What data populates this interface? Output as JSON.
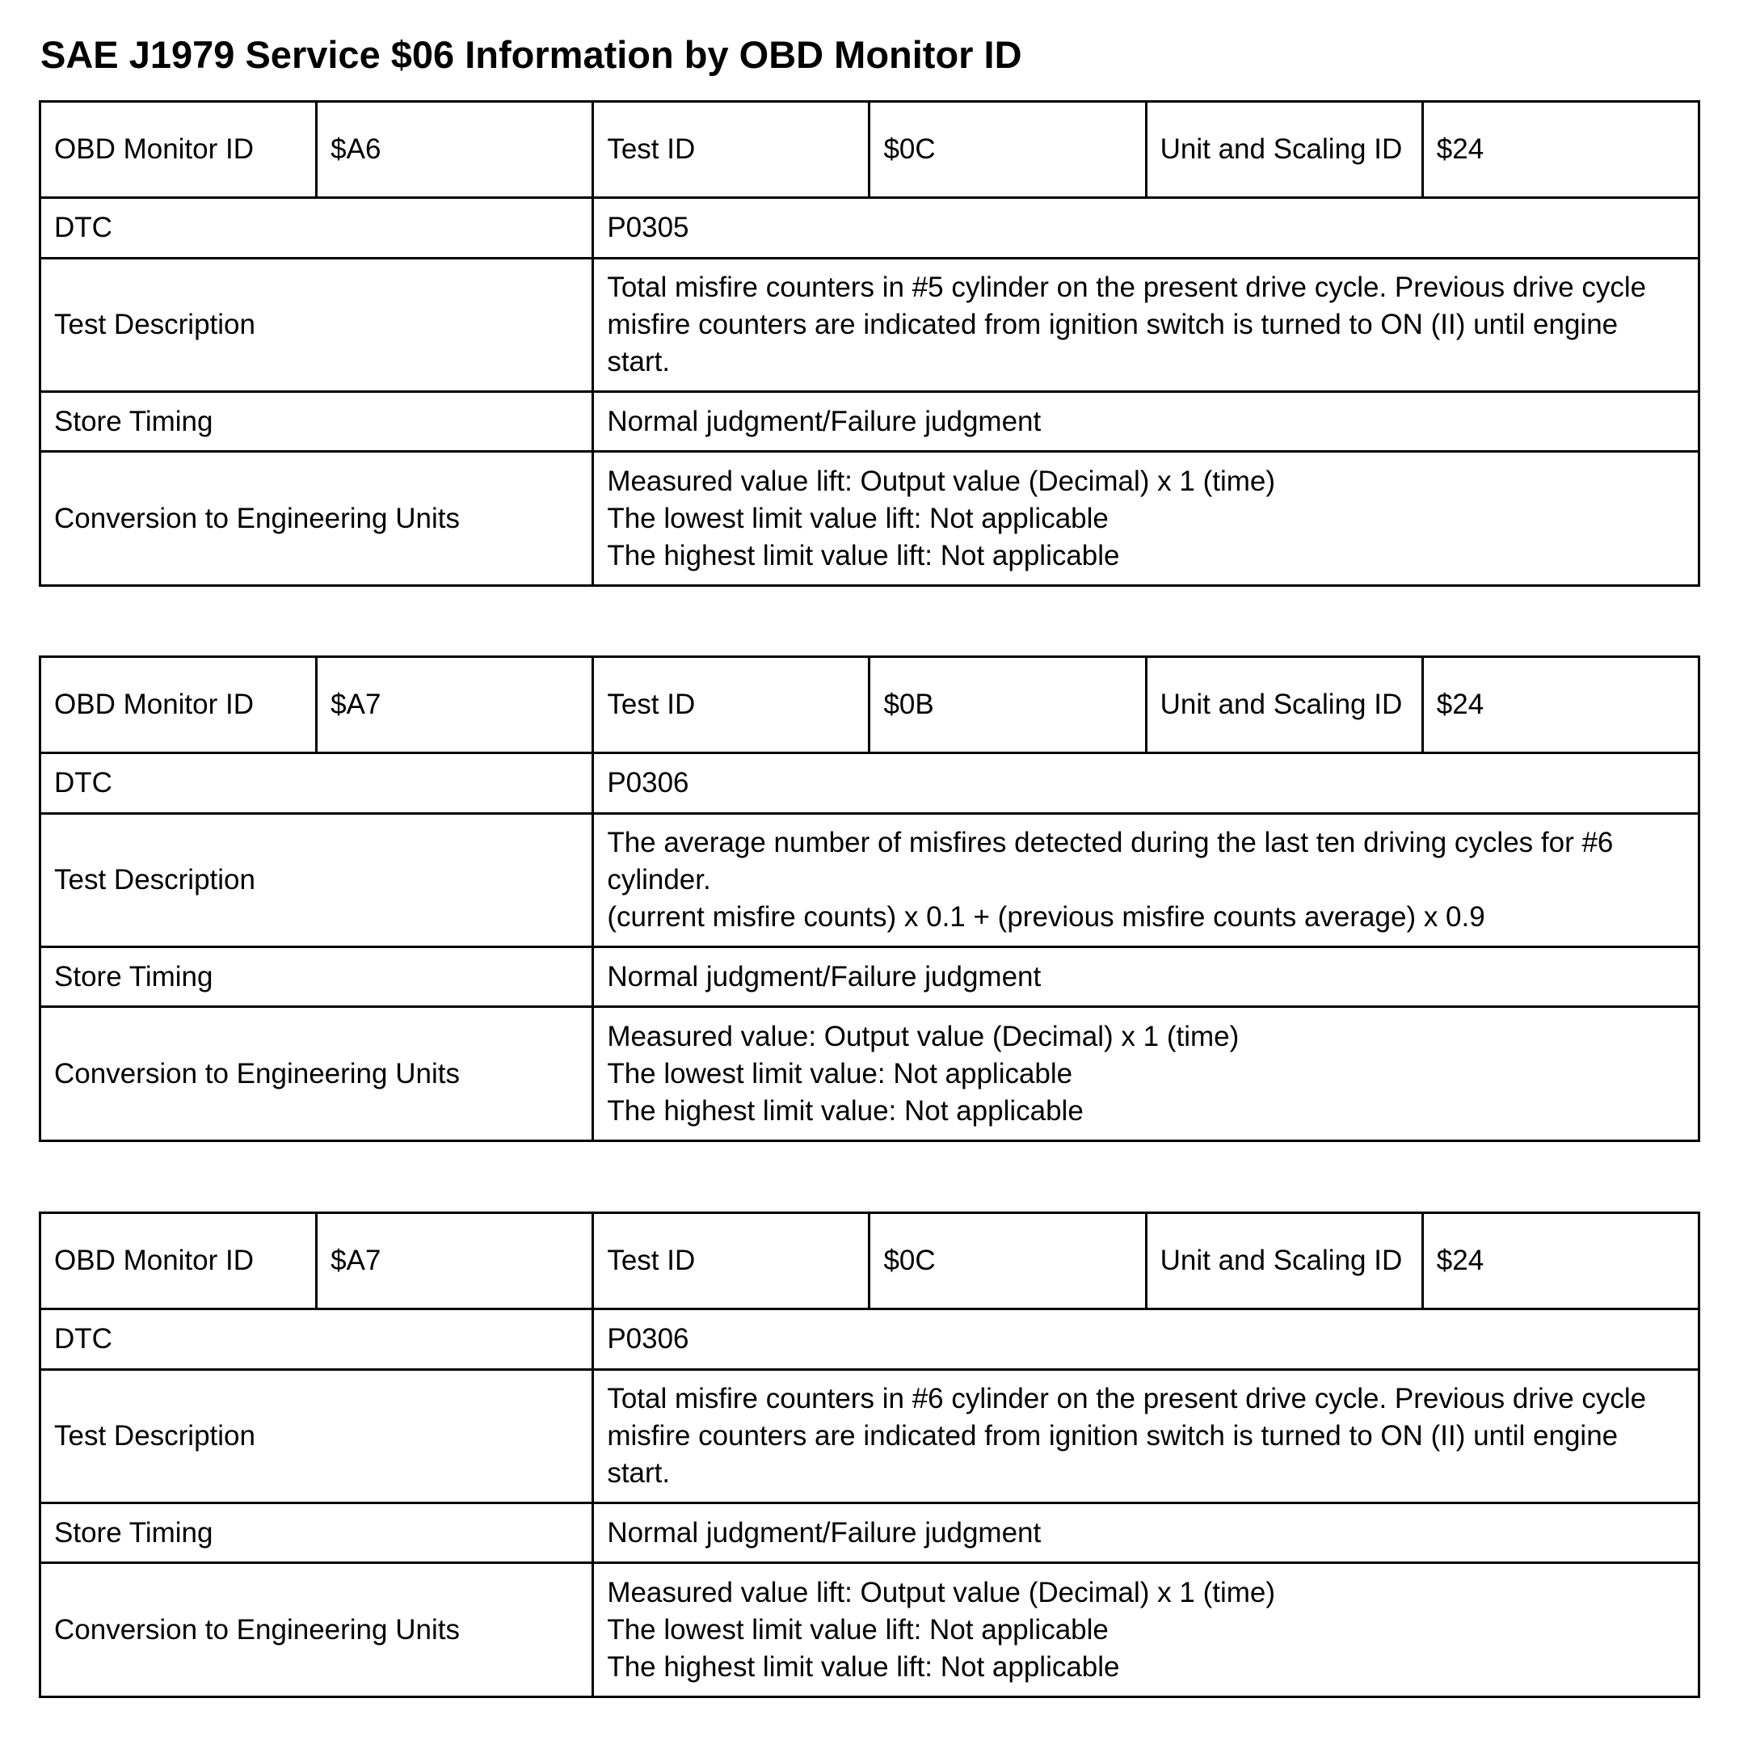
{
  "title": "SAE J1979 Service $06 Information by OBD Monitor ID",
  "labels": {
    "obd_monitor_id": "OBD Monitor ID",
    "test_id": "Test ID",
    "unit_scaling_id": "Unit and Scaling ID",
    "dtc": "DTC",
    "test_description": "Test Description",
    "store_timing": "Store Timing",
    "conversion": "Conversion to Engineering Units"
  },
  "tables": [
    {
      "obd_monitor_id": "$A6",
      "test_id": "$0C",
      "unit_scaling_id": "$24",
      "dtc": "P0305",
      "test_description": [
        "Total misfire counters in #5 cylinder on the present drive cycle. Previous drive cycle misfire counters are indicated from ignition switch is turned to ON (II) until engine start."
      ],
      "store_timing": "Normal judgment/Failure judgment",
      "conversion": [
        "Measured value lift: Output value (Decimal) x 1 (time)",
        "The lowest limit value lift: Not applicable",
        "The highest limit value lift: Not applicable"
      ]
    },
    {
      "obd_monitor_id": "$A7",
      "test_id": "$0B",
      "unit_scaling_id": "$24",
      "dtc": "P0306",
      "test_description": [
        "The average number of misfires detected during the last ten driving cycles for #6 cylinder.",
        "(current misfire counts) x 0.1 + (previous misfire counts average) x 0.9"
      ],
      "store_timing": "Normal judgment/Failure judgment",
      "conversion": [
        "Measured value: Output value (Decimal) x 1 (time)",
        "The lowest limit value: Not applicable",
        "The highest limit value: Not applicable"
      ]
    },
    {
      "obd_monitor_id": "$A7",
      "test_id": "$0C",
      "unit_scaling_id": "$24",
      "dtc": "P0306",
      "test_description": [
        "Total misfire counters in #6 cylinder on the present drive cycle. Previous drive cycle misfire counters are indicated from ignition switch is turned to ON (II) until engine start."
      ],
      "store_timing": "Normal judgment/Failure judgment",
      "conversion": [
        "Measured value lift: Output value (Decimal) x 1 (time)",
        "The lowest limit value lift: Not applicable",
        "The highest limit value lift: Not applicable"
      ]
    }
  ]
}
